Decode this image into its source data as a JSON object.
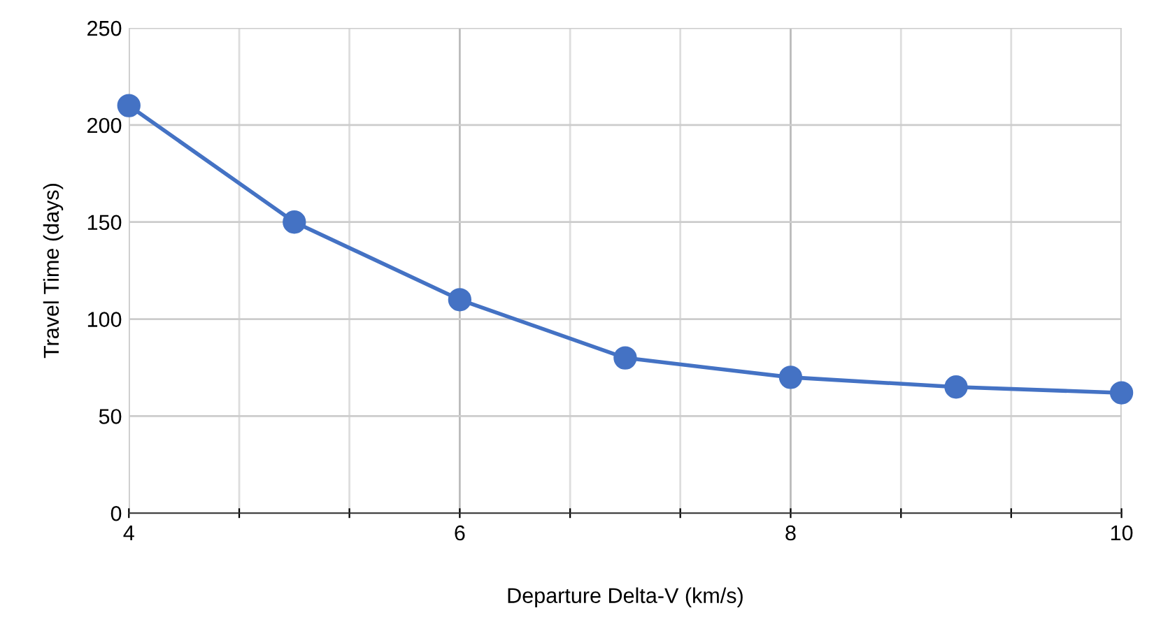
{
  "chart_data": {
    "type": "line",
    "xlabel": "Departure Delta-V (km/s)",
    "ylabel": "Travel Time (days)",
    "x": [
      4,
      5,
      6,
      7,
      8,
      9,
      10
    ],
    "series": [
      {
        "color": "#4472c4",
        "values": [
          210,
          150,
          110,
          80,
          70,
          65,
          62
        ]
      }
    ],
    "xlim": [
      4,
      10
    ],
    "ylim": [
      0,
      250
    ],
    "xticks": [
      4,
      {
        "value": 4.667,
        "label": null
      },
      {
        "value": 5.333,
        "label": null
      },
      6,
      {
        "value": 6.667,
        "label": null
      },
      {
        "value": 7.333,
        "label": null
      },
      8,
      {
        "value": 8.667,
        "label": null
      },
      {
        "value": 9.333,
        "label": null
      },
      10
    ],
    "yticks": [
      0,
      50,
      100,
      150,
      200,
      250
    ],
    "grid": true,
    "marker": "circle",
    "line_style": "solid",
    "legend": false
  }
}
